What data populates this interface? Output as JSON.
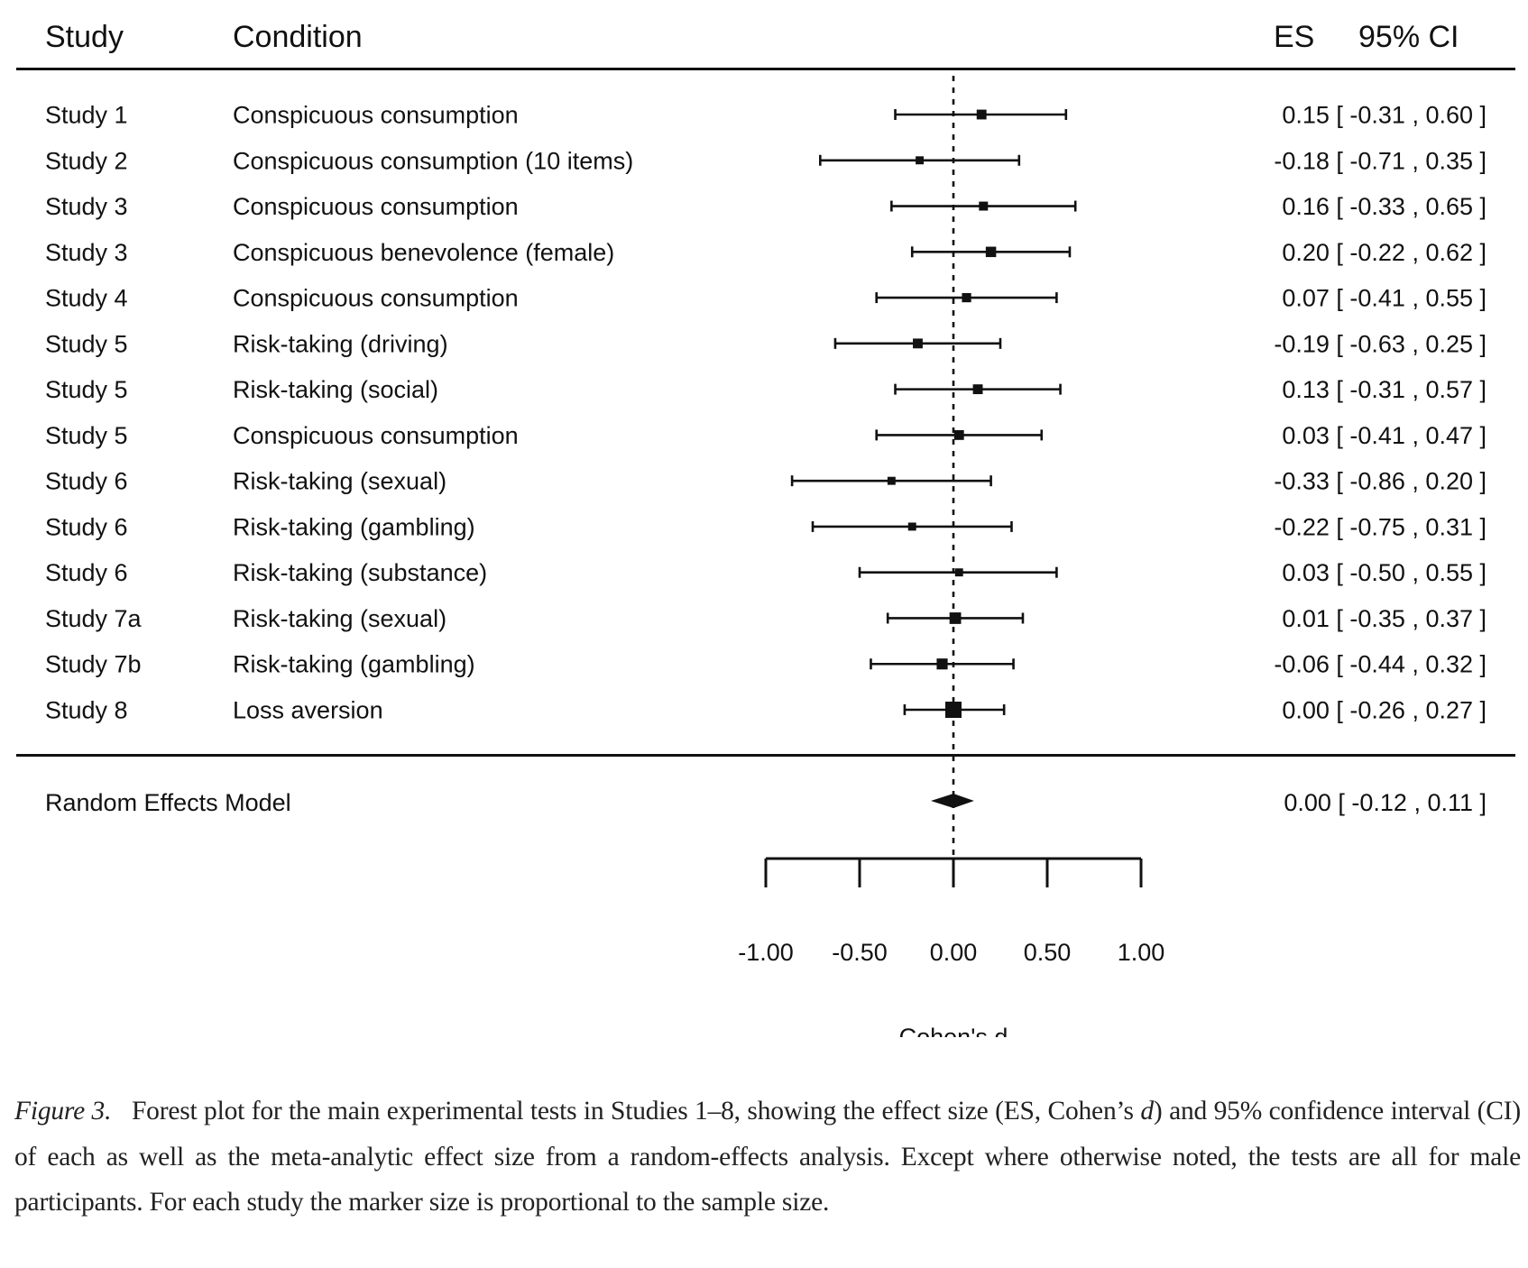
{
  "header": {
    "study_label": "Study",
    "condition_label": "Condition",
    "es_label": "ES",
    "ci_label": "95% CI"
  },
  "chart_data": {
    "type": "forest",
    "title": "",
    "xlabel": "Cohen's d",
    "xlim": [
      -1.0,
      1.0
    ],
    "x_ticks": [
      -1.0,
      -0.5,
      0.0,
      0.5,
      1.0
    ],
    "x_tick_labels": [
      "-1.00",
      "-0.50",
      "0.00",
      "0.50",
      "1.00"
    ],
    "reference_line": 0.0,
    "rows": [
      {
        "study": "Study 1",
        "condition": "Conspicuous consumption",
        "es": 0.15,
        "ci_low": -0.31,
        "ci_high": 0.6,
        "es_text": "0.15 [ -0.31 , 0.60 ]",
        "marker_weight": 0.45
      },
      {
        "study": "Study 2",
        "condition": "Conspicuous consumption (10 items)",
        "es": -0.18,
        "ci_low": -0.71,
        "ci_high": 0.35,
        "es_text": "-0.18 [ -0.71 , 0.35 ]",
        "marker_weight": 0.3
      },
      {
        "study": "Study 3",
        "condition": "Conspicuous consumption",
        "es": 0.16,
        "ci_low": -0.33,
        "ci_high": 0.65,
        "es_text": "0.16 [ -0.33 , 0.65 ]",
        "marker_weight": 0.38
      },
      {
        "study": "Study 3",
        "condition": "Conspicuous benevolence (female)",
        "es": 0.2,
        "ci_low": -0.22,
        "ci_high": 0.62,
        "es_text": "0.20 [ -0.22 , 0.62 ]",
        "marker_weight": 0.5
      },
      {
        "study": "Study 4",
        "condition": "Conspicuous consumption",
        "es": 0.07,
        "ci_low": -0.41,
        "ci_high": 0.55,
        "es_text": "0.07 [ -0.41 , 0.55 ]",
        "marker_weight": 0.4
      },
      {
        "study": "Study 5",
        "condition": "Risk-taking (driving)",
        "es": -0.19,
        "ci_low": -0.63,
        "ci_high": 0.25,
        "es_text": "-0.19 [ -0.63 , 0.25 ]",
        "marker_weight": 0.45
      },
      {
        "study": "Study 5",
        "condition": "Risk-taking (social)",
        "es": 0.13,
        "ci_low": -0.31,
        "ci_high": 0.57,
        "es_text": "0.13 [ -0.31 , 0.57 ]",
        "marker_weight": 0.45
      },
      {
        "study": "Study 5",
        "condition": "Conspicuous consumption",
        "es": 0.03,
        "ci_low": -0.41,
        "ci_high": 0.47,
        "es_text": "0.03 [ -0.41 , 0.47 ]",
        "marker_weight": 0.45
      },
      {
        "study": "Study 6",
        "condition": "Risk-taking (sexual)",
        "es": -0.33,
        "ci_low": -0.86,
        "ci_high": 0.2,
        "es_text": "-0.33 [ -0.86 , 0.20 ]",
        "marker_weight": 0.3
      },
      {
        "study": "Study 6",
        "condition": "Risk-taking (gambling)",
        "es": -0.22,
        "ci_low": -0.75,
        "ci_high": 0.31,
        "es_text": "-0.22 [ -0.75 , 0.31 ]",
        "marker_weight": 0.3
      },
      {
        "study": "Study 6",
        "condition": "Risk-taking (substance)",
        "es": 0.03,
        "ci_low": -0.5,
        "ci_high": 0.55,
        "es_text": "0.03 [ -0.50 , 0.55 ]",
        "marker_weight": 0.3
      },
      {
        "study": "Study 7a",
        "condition": "Risk-taking (sexual)",
        "es": 0.01,
        "ci_low": -0.35,
        "ci_high": 0.37,
        "es_text": "0.01 [ -0.35 , 0.37 ]",
        "marker_weight": 0.6
      },
      {
        "study": "Study 7b",
        "condition": "Risk-taking (gambling)",
        "es": -0.06,
        "ci_low": -0.44,
        "ci_high": 0.32,
        "es_text": "-0.06 [ -0.44 , 0.32 ]",
        "marker_weight": 0.55
      },
      {
        "study": "Study 8",
        "condition": "Loss aversion",
        "es": 0.0,
        "ci_low": -0.26,
        "ci_high": 0.27,
        "es_text": "0.00 [ -0.26 , 0.27 ]",
        "marker_weight": 1.0
      }
    ],
    "summary": {
      "label": "Random Effects Model",
      "es": 0.0,
      "ci_low": -0.12,
      "ci_high": 0.11,
      "es_text": "0.00 [ -0.12 , 0.11 ]"
    }
  },
  "caption": {
    "figure_label": "Figure 3.",
    "text_before_d": "Forest plot for the main experimental tests in Studies 1–8, showing the effect size (ES, Cohen’s ",
    "italic_d": "d",
    "text_after_d": ") and 95% confidence interval (CI) of each as well as the meta-analytic effect size from a random-effects analysis. Except where otherwise noted, the tests are all for male participants. For each study the marker size is proportional to the sample size."
  }
}
